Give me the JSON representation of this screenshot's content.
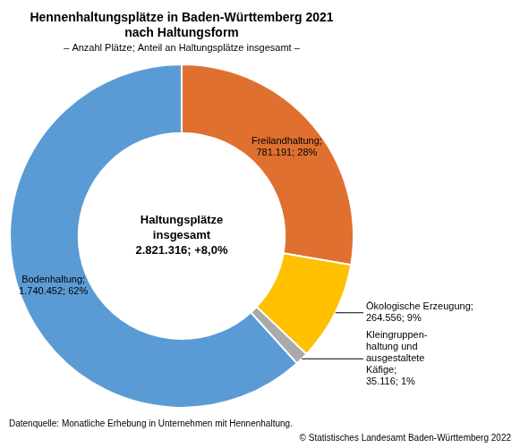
{
  "chart_data": {
    "type": "doughnut",
    "title": [
      "Hennenhaltungsplätze in Baden-Württemberg 2021",
      "nach Haltungsform"
    ],
    "subtitle": "– Anzahl Plätze; Anteil an Haltungsplätze insgesamt –",
    "center_text": [
      "Haltungsplätze",
      "insgesamt",
      "2.821.316; +8,0%"
    ],
    "categories": [
      "Freilandhaltung;\n781.191; 28%",
      "Ökologische Erzeugung;\n264.556; 9%",
      "Kleingruppen-\nhaltung und\nausgestaltete\nKäfige;\n35.116; 1%",
      "Bodenhaltung;\n1.740.452; 62%"
    ],
    "values": [
      781191,
      264556,
      35116,
      1740452
    ],
    "colors": [
      "#E07030",
      "#FFC000",
      "#AAAAAA",
      "#5B9BD5"
    ],
    "footnote": "Datenquelle: Monatliche Erhebung in Unternehmen mit Hennenhaltung.",
    "copyright": "© Statistisches Landesamt Baden-Württemberg 2022"
  }
}
